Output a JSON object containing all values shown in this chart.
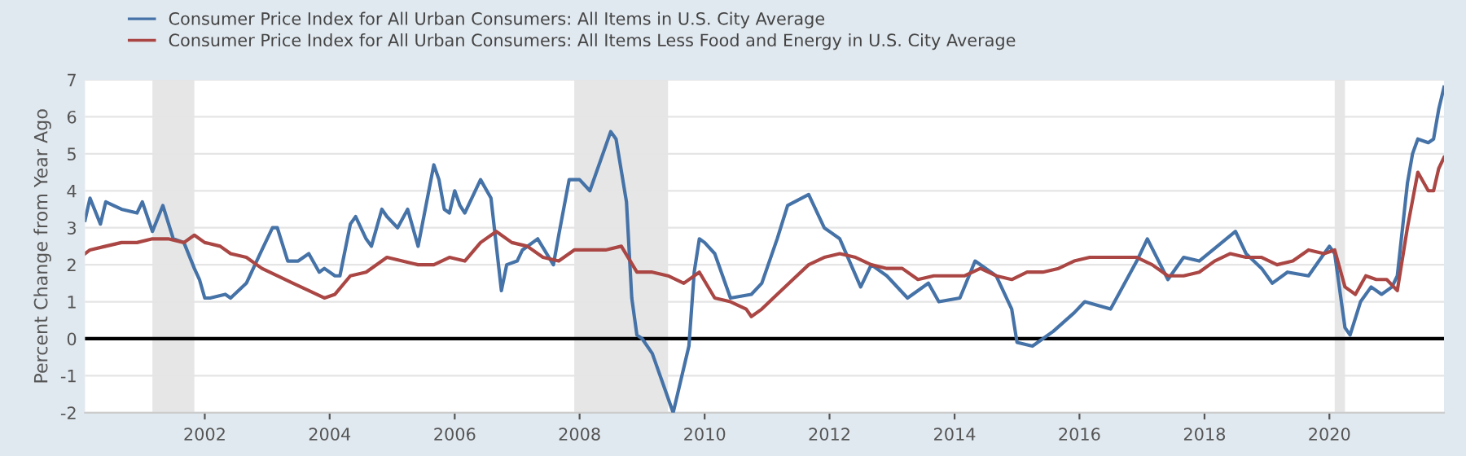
{
  "chart_data": {
    "type": "line",
    "ylabel": "Percent Change from Year Ago",
    "xlim": [
      "2000-02",
      "2021-11"
    ],
    "ylim": [
      -2,
      7
    ],
    "yticks": [
      -2,
      -1,
      0,
      1,
      2,
      3,
      4,
      5,
      6,
      7
    ],
    "xticks": [
      {
        "value": "2002-01",
        "label": "2002"
      },
      {
        "value": "2004-01",
        "label": "2004"
      },
      {
        "value": "2006-01",
        "label": "2006"
      },
      {
        "value": "2008-01",
        "label": "2008"
      },
      {
        "value": "2010-01",
        "label": "2010"
      },
      {
        "value": "2012-01",
        "label": "2012"
      },
      {
        "value": "2014-01",
        "label": "2014"
      },
      {
        "value": "2016-01",
        "label": "2016"
      },
      {
        "value": "2018-01",
        "label": "2018"
      },
      {
        "value": "2020-01",
        "label": "2020"
      }
    ],
    "grid": "y",
    "legend": "top left",
    "marker": "none",
    "line_style": "solid",
    "bands": [
      {
        "axis": "x",
        "from": "2001-03",
        "to": "2001-11",
        "color": "#e6e6e6"
      },
      {
        "axis": "x",
        "from": "2007-12",
        "to": "2009-06",
        "color": "#e6e6e6"
      },
      {
        "axis": "x",
        "from": "2020-02",
        "to": "2020-04",
        "color": "#e6e6e6"
      }
    ],
    "ref_lines": [
      {
        "axis": "y",
        "value": 0,
        "color": "#000000"
      }
    ],
    "series": [
      {
        "name": "Consumer Price Index for All Urban Consumers: All Items in U.S. City Average",
        "color": "#4572a7",
        "x": [
          "2000-02",
          "2000-03",
          "2000-05",
          "2000-06",
          "2000-09",
          "2000-12",
          "2001-01",
          "2001-03",
          "2001-05",
          "2001-07",
          "2001-09",
          "2001-11",
          "2001-12",
          "2002-01",
          "2002-02",
          "2002-05",
          "2002-06",
          "2002-09",
          "2002-12",
          "2003-02",
          "2003-03",
          "2003-05",
          "2003-07",
          "2003-09",
          "2003-11",
          "2003-12",
          "2004-02",
          "2004-03",
          "2004-05",
          "2004-06",
          "2004-08",
          "2004-09",
          "2004-11",
          "2004-12",
          "2005-02",
          "2005-04",
          "2005-06",
          "2005-09",
          "2005-10",
          "2005-11",
          "2005-12",
          "2006-01",
          "2006-02",
          "2006-03",
          "2006-06",
          "2006-08",
          "2006-10",
          "2006-11",
          "2007-01",
          "2007-02",
          "2007-05",
          "2007-08",
          "2007-09",
          "2007-11",
          "2008-01",
          "2008-03",
          "2008-07",
          "2008-08",
          "2008-10",
          "2008-11",
          "2008-12",
          "2009-01",
          "2009-03",
          "2009-07",
          "2009-10",
          "2009-11",
          "2009-12",
          "2010-01",
          "2010-03",
          "2010-06",
          "2010-10",
          "2010-12",
          "2011-03",
          "2011-05",
          "2011-09",
          "2011-12",
          "2012-03",
          "2012-07",
          "2012-09",
          "2012-12",
          "2013-04",
          "2013-08",
          "2013-10",
          "2014-02",
          "2014-05",
          "2014-09",
          "2014-12",
          "2015-01",
          "2015-04",
          "2015-08",
          "2015-12",
          "2016-02",
          "2016-07",
          "2016-12",
          "2017-02",
          "2017-06",
          "2017-09",
          "2017-12",
          "2018-07",
          "2018-09",
          "2018-12",
          "2019-02",
          "2019-05",
          "2019-09",
          "2019-12",
          "2020-01",
          "2020-02",
          "2020-04",
          "2020-05",
          "2020-07",
          "2020-09",
          "2020-11",
          "2021-01",
          "2021-02",
          "2021-04",
          "2021-05",
          "2021-06",
          "2021-08",
          "2021-09",
          "2021-10",
          "2021-11"
        ],
        "values": [
          3.2,
          3.8,
          3.1,
          3.7,
          3.5,
          3.4,
          3.7,
          2.9,
          3.6,
          2.7,
          2.6,
          1.9,
          1.6,
          1.1,
          1.1,
          1.2,
          1.1,
          1.5,
          2.4,
          3.0,
          3.0,
          2.1,
          2.1,
          2.3,
          1.8,
          1.9,
          1.7,
          1.7,
          3.1,
          3.3,
          2.7,
          2.5,
          3.5,
          3.3,
          3.0,
          3.5,
          2.5,
          4.7,
          4.3,
          3.5,
          3.4,
          4.0,
          3.6,
          3.4,
          4.3,
          3.8,
          1.3,
          2.0,
          2.1,
          2.4,
          2.7,
          2.0,
          2.8,
          4.3,
          4.3,
          4.0,
          5.6,
          5.4,
          3.7,
          1.1,
          0.1,
          0.0,
          -0.4,
          -2.0,
          -0.2,
          1.8,
          2.7,
          2.6,
          2.3,
          1.1,
          1.2,
          1.5,
          2.7,
          3.6,
          3.9,
          3.0,
          2.7,
          1.4,
          2.0,
          1.7,
          1.1,
          1.5,
          1.0,
          1.1,
          2.1,
          1.7,
          0.8,
          -0.1,
          -0.2,
          0.2,
          0.7,
          1.0,
          0.8,
          2.1,
          2.7,
          1.6,
          2.2,
          2.1,
          2.9,
          2.3,
          1.9,
          1.5,
          1.8,
          1.7,
          2.3,
          2.5,
          2.3,
          0.3,
          0.1,
          1.0,
          1.4,
          1.2,
          1.4,
          1.7,
          4.2,
          5.0,
          5.4,
          5.3,
          5.4,
          6.2,
          6.8
        ]
      },
      {
        "name": "Consumer Price Index for All Urban Consumers: All Items Less Food and Energy in U.S. City Average",
        "color": "#aa4643",
        "x": [
          "2000-02",
          "2000-03",
          "2000-06",
          "2000-09",
          "2000-12",
          "2001-03",
          "2001-06",
          "2001-09",
          "2001-11",
          "2002-01",
          "2002-04",
          "2002-06",
          "2002-09",
          "2002-12",
          "2003-03",
          "2003-06",
          "2003-09",
          "2003-12",
          "2004-02",
          "2004-05",
          "2004-08",
          "2004-12",
          "2005-06",
          "2005-09",
          "2005-12",
          "2006-03",
          "2006-06",
          "2006-09",
          "2006-12",
          "2007-03",
          "2007-06",
          "2007-09",
          "2007-12",
          "2008-03",
          "2008-06",
          "2008-09",
          "2008-12",
          "2009-03",
          "2009-06",
          "2009-09",
          "2009-12",
          "2010-03",
          "2010-06",
          "2010-09",
          "2010-10",
          "2010-12",
          "2011-03",
          "2011-06",
          "2011-09",
          "2011-12",
          "2012-03",
          "2012-06",
          "2012-09",
          "2012-12",
          "2013-03",
          "2013-06",
          "2013-09",
          "2013-12",
          "2014-03",
          "2014-06",
          "2014-09",
          "2014-12",
          "2015-03",
          "2015-06",
          "2015-09",
          "2015-12",
          "2016-03",
          "2016-06",
          "2016-09",
          "2016-12",
          "2017-03",
          "2017-06",
          "2017-09",
          "2017-12",
          "2018-03",
          "2018-06",
          "2018-09",
          "2018-12",
          "2019-03",
          "2019-06",
          "2019-09",
          "2019-12",
          "2020-02",
          "2020-04",
          "2020-06",
          "2020-08",
          "2020-10",
          "2020-12",
          "2021-02",
          "2021-04",
          "2021-06",
          "2021-08",
          "2021-09",
          "2021-10",
          "2021-11"
        ],
        "values": [
          2.3,
          2.4,
          2.5,
          2.6,
          2.6,
          2.7,
          2.7,
          2.6,
          2.8,
          2.6,
          2.5,
          2.3,
          2.2,
          1.9,
          1.7,
          1.5,
          1.3,
          1.1,
          1.2,
          1.7,
          1.8,
          2.2,
          2.0,
          2.0,
          2.2,
          2.1,
          2.6,
          2.9,
          2.6,
          2.5,
          2.2,
          2.1,
          2.4,
          2.4,
          2.4,
          2.5,
          1.8,
          1.8,
          1.7,
          1.5,
          1.8,
          1.1,
          1.0,
          0.8,
          0.6,
          0.8,
          1.2,
          1.6,
          2.0,
          2.2,
          2.3,
          2.2,
          2.0,
          1.9,
          1.9,
          1.6,
          1.7,
          1.7,
          1.7,
          1.9,
          1.7,
          1.6,
          1.8,
          1.8,
          1.9,
          2.1,
          2.2,
          2.2,
          2.2,
          2.2,
          2.0,
          1.7,
          1.7,
          1.8,
          2.1,
          2.3,
          2.2,
          2.2,
          2.0,
          2.1,
          2.4,
          2.3,
          2.4,
          1.4,
          1.2,
          1.7,
          1.6,
          1.6,
          1.3,
          3.0,
          4.5,
          4.0,
          4.0,
          4.6,
          4.9
        ]
      }
    ]
  }
}
